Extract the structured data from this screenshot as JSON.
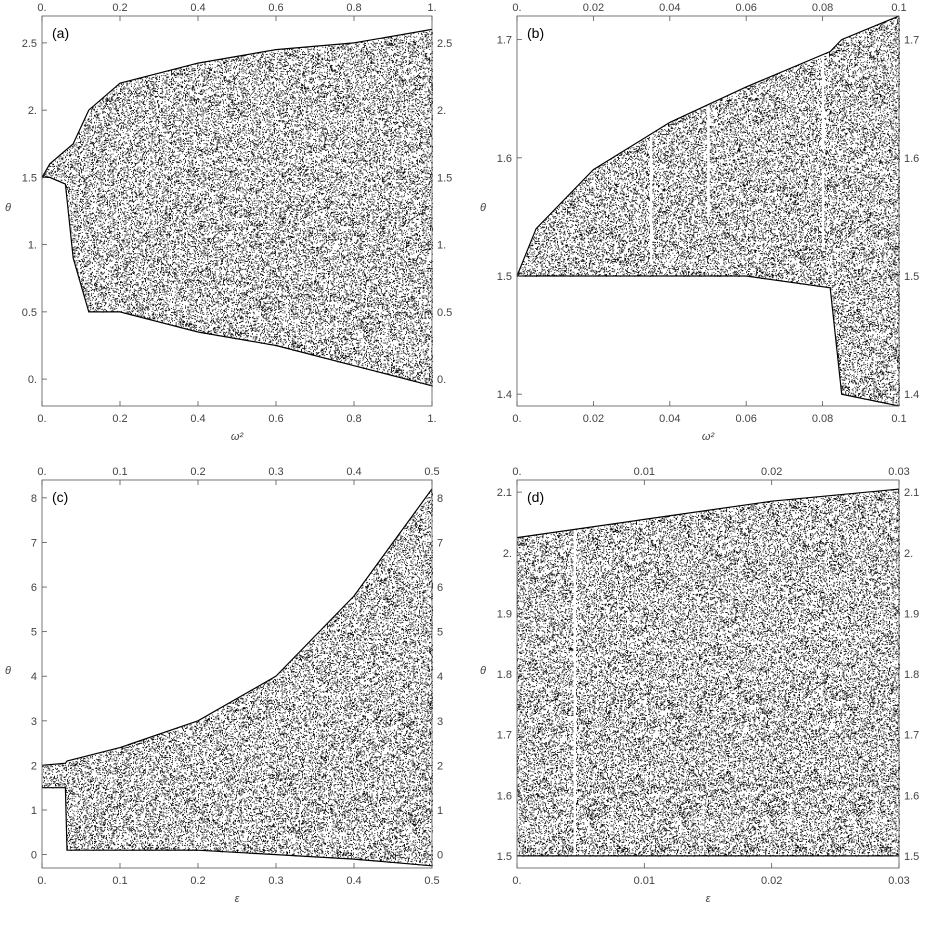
{
  "chart_data": [
    {
      "type": "scatter",
      "panel_label": "(a)",
      "xlabel": "ω²",
      "ylabel": "θ",
      "xlim": [
        0,
        1
      ],
      "ylim": [
        -0.2,
        2.7
      ],
      "x_ticks": [
        {
          "value": 0,
          "label": "0."
        },
        {
          "value": 0.2,
          "label": "0.2"
        },
        {
          "value": 0.4,
          "label": "0.4"
        },
        {
          "value": 0.6,
          "label": "0.6"
        },
        {
          "value": 0.8,
          "label": "0.8"
        },
        {
          "value": 1,
          "label": "1."
        }
      ],
      "y_ticks": [
        {
          "value": 0,
          "label": "0."
        },
        {
          "value": 0.5,
          "label": "0.5"
        },
        {
          "value": 1,
          "label": "1."
        },
        {
          "value": 1.5,
          "label": "1.5"
        },
        {
          "value": 2,
          "label": "2."
        },
        {
          "value": 2.5,
          "label": "2.5"
        }
      ],
      "envelope": [
        {
          "x": 0.0,
          "lower": 1.5,
          "upper": 1.5
        },
        {
          "x": 0.02,
          "lower": 1.5,
          "upper": 1.6
        },
        {
          "x": 0.06,
          "lower": 1.45,
          "upper": 1.7
        },
        {
          "x": 0.08,
          "lower": 0.9,
          "upper": 1.75
        },
        {
          "x": 0.12,
          "lower": 0.5,
          "upper": 2.0
        },
        {
          "x": 0.2,
          "lower": 0.5,
          "upper": 2.2
        },
        {
          "x": 0.4,
          "lower": 0.35,
          "upper": 2.35
        },
        {
          "x": 0.6,
          "lower": 0.25,
          "upper": 2.45
        },
        {
          "x": 0.8,
          "lower": 0.1,
          "upper": 2.5
        },
        {
          "x": 1.0,
          "lower": -0.05,
          "upper": 2.6
        }
      ]
    },
    {
      "type": "scatter",
      "panel_label": "(b)",
      "xlabel": "ω²",
      "ylabel": "θ",
      "xlim": [
        0,
        0.1
      ],
      "ylim": [
        1.39,
        1.72
      ],
      "x_ticks": [
        {
          "value": 0,
          "label": "0."
        },
        {
          "value": 0.02,
          "label": "0.02"
        },
        {
          "value": 0.04,
          "label": "0.04"
        },
        {
          "value": 0.06,
          "label": "0.06"
        },
        {
          "value": 0.08,
          "label": "0.08"
        },
        {
          "value": 0.1,
          "label": "0.1"
        }
      ],
      "y_ticks": [
        {
          "value": 1.4,
          "label": "1.4"
        },
        {
          "value": 1.5,
          "label": "1.5"
        },
        {
          "value": 1.6,
          "label": "1.6"
        },
        {
          "value": 1.7,
          "label": "1.7"
        }
      ],
      "envelope": [
        {
          "x": 0.0,
          "lower": 1.5,
          "upper": 1.5
        },
        {
          "x": 0.005,
          "lower": 1.5,
          "upper": 1.54
        },
        {
          "x": 0.02,
          "lower": 1.5,
          "upper": 1.59
        },
        {
          "x": 0.04,
          "lower": 1.5,
          "upper": 1.63
        },
        {
          "x": 0.06,
          "lower": 1.5,
          "upper": 1.66
        },
        {
          "x": 0.082,
          "lower": 1.49,
          "upper": 1.69
        },
        {
          "x": 0.085,
          "lower": 1.4,
          "upper": 1.7
        },
        {
          "x": 0.1,
          "lower": 1.39,
          "upper": 1.72
        }
      ],
      "windows": [
        {
          "x": 0.035,
          "lower": 1.51,
          "upper": 1.62
        },
        {
          "x": 0.05,
          "lower": 1.55,
          "upper": 1.7
        },
        {
          "x": 0.08,
          "lower": 1.61,
          "upper": 1.69
        },
        {
          "x": 0.08,
          "lower": 1.53,
          "upper": 1.59
        }
      ]
    },
    {
      "type": "scatter",
      "panel_label": "(c)",
      "xlabel": "ε",
      "ylabel": "θ",
      "xlim": [
        0,
        0.5
      ],
      "ylim": [
        -0.3,
        8.4
      ],
      "x_ticks": [
        {
          "value": 0,
          "label": "0."
        },
        {
          "value": 0.1,
          "label": "0.1"
        },
        {
          "value": 0.2,
          "label": "0.2"
        },
        {
          "value": 0.3,
          "label": "0.3"
        },
        {
          "value": 0.4,
          "label": "0.4"
        },
        {
          "value": 0.5,
          "label": "0.5"
        }
      ],
      "y_ticks": [
        {
          "value": 0,
          "label": "0"
        },
        {
          "value": 1,
          "label": "1"
        },
        {
          "value": 2,
          "label": "2"
        },
        {
          "value": 3,
          "label": "3"
        },
        {
          "value": 4,
          "label": "4"
        },
        {
          "value": 5,
          "label": "5"
        },
        {
          "value": 6,
          "label": "6"
        },
        {
          "value": 7,
          "label": "7"
        },
        {
          "value": 8,
          "label": "8"
        }
      ],
      "envelope": [
        {
          "x": 0.0,
          "lower": 1.5,
          "upper": 2.0
        },
        {
          "x": 0.03,
          "lower": 1.5,
          "upper": 2.05
        },
        {
          "x": 0.032,
          "lower": 0.1,
          "upper": 2.1
        },
        {
          "x": 0.1,
          "lower": 0.1,
          "upper": 2.4
        },
        {
          "x": 0.2,
          "lower": 0.1,
          "upper": 3.0
        },
        {
          "x": 0.3,
          "lower": 0.0,
          "upper": 4.0
        },
        {
          "x": 0.4,
          "lower": -0.1,
          "upper": 5.8
        },
        {
          "x": 0.5,
          "lower": -0.25,
          "upper": 8.2
        }
      ]
    },
    {
      "type": "scatter",
      "panel_label": "(d)",
      "xlabel": "ε",
      "ylabel": "θ",
      "xlim": [
        0,
        0.03
      ],
      "ylim": [
        1.48,
        2.12
      ],
      "x_ticks": [
        {
          "value": 0,
          "label": "0."
        },
        {
          "value": 0.01,
          "label": "0.01"
        },
        {
          "value": 0.02,
          "label": "0.02"
        },
        {
          "value": 0.03,
          "label": "0.03"
        }
      ],
      "y_ticks": [
        {
          "value": 1.5,
          "label": "1.5"
        },
        {
          "value": 1.6,
          "label": "1.6"
        },
        {
          "value": 1.7,
          "label": "1.7"
        },
        {
          "value": 1.8,
          "label": "1.8"
        },
        {
          "value": 1.9,
          "label": "1.9"
        },
        {
          "value": 2.0,
          "label": "2."
        },
        {
          "value": 2.1,
          "label": "2.1"
        }
      ],
      "envelope": [
        {
          "x": 0.0,
          "lower": 1.5,
          "upper": 2.025
        },
        {
          "x": 0.01,
          "lower": 1.5,
          "upper": 2.055
        },
        {
          "x": 0.02,
          "lower": 1.5,
          "upper": 2.085
        },
        {
          "x": 0.03,
          "lower": 1.5,
          "upper": 2.105
        }
      ],
      "windows": [
        {
          "x": 0.0045,
          "lower": 1.5,
          "upper": 2.04
        }
      ]
    }
  ]
}
